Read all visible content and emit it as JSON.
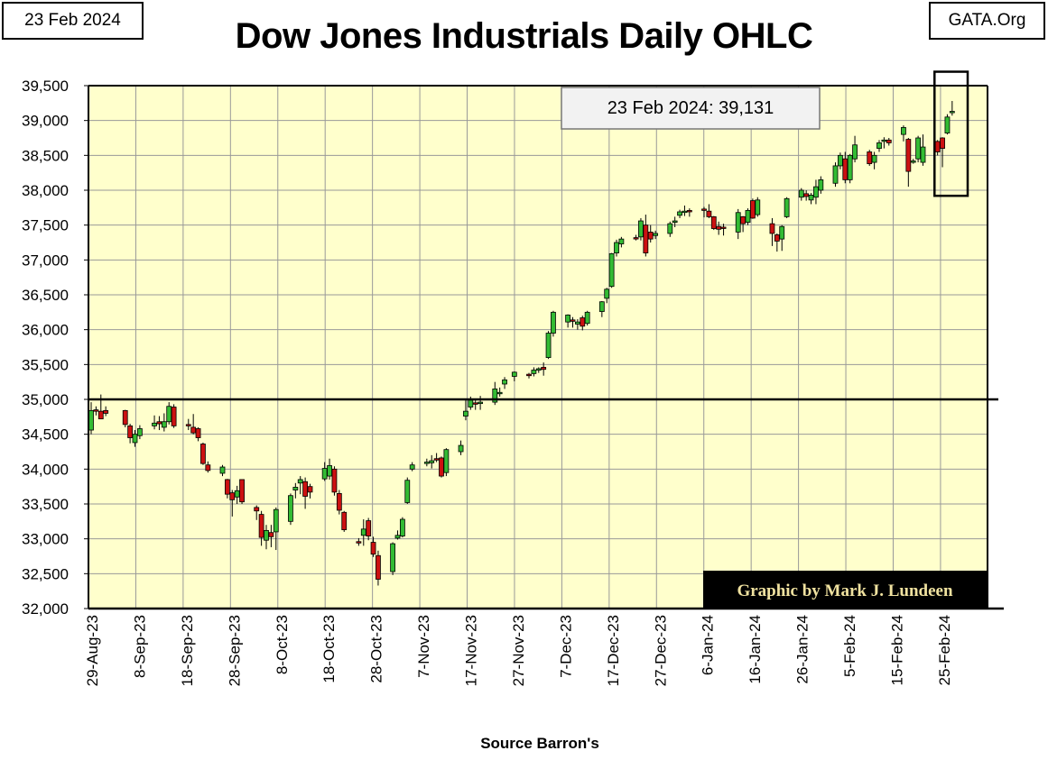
{
  "header": {
    "date_label": "23 Feb 2024",
    "site_label": "GATA.Org",
    "title": "Dow Jones Industrials Daily OHLC"
  },
  "annotation": {
    "text": "23 Feb 2024:  39,131"
  },
  "credit": {
    "text": "Graphic by Mark J. Lundeen"
  },
  "footer": {
    "source": "Source Barron's"
  },
  "colors": {
    "plot_bg": "#ffffcc",
    "grid": "#999999",
    "up": "#33bb33",
    "down": "#cc1111",
    "credit_bg": "#000000",
    "credit_text": "#f0e2a0"
  },
  "chart_data": {
    "type": "ohlc-candlestick",
    "title": "Dow Jones Industrials Daily OHLC",
    "xlabel": "Source Barron's",
    "ylabel": "",
    "ylim": [
      32000,
      39500
    ],
    "y_ticks": [
      32000,
      32500,
      33000,
      33500,
      34000,
      34500,
      35000,
      35500,
      36000,
      36500,
      37000,
      37500,
      38000,
      38500,
      39000,
      39500
    ],
    "y_tick_labels": [
      "32,000",
      "32,500",
      "33,000",
      "33,500",
      "34,000",
      "34,500",
      "35,000",
      "35,500",
      "36,000",
      "36,500",
      "37,000",
      "37,500",
      "38,000",
      "38,500",
      "39,000",
      "39,500"
    ],
    "x_tick_labels": [
      "29-Aug-23",
      "8-Sep-23",
      "18-Sep-23",
      "28-Sep-23",
      "8-Oct-23",
      "18-Oct-23",
      "28-Oct-23",
      "7-Nov-23",
      "17-Nov-23",
      "27-Nov-23",
      "7-Dec-23",
      "17-Dec-23",
      "27-Dec-23",
      "6-Jan-24",
      "16-Jan-24",
      "26-Jan-24",
      "5-Feb-24",
      "15-Feb-24",
      "25-Feb-24"
    ],
    "x_days_total": 180,
    "reference_line": 35000,
    "highlight_day_range": [
      173,
      180
    ],
    "highlight_value_range": [
      37920,
      39700
    ],
    "candles": [
      {
        "d": 0,
        "o": 34560,
        "h": 34960,
        "l": 34500,
        "c": 34840
      },
      {
        "d": 1,
        "o": 34850,
        "h": 34900,
        "l": 34770,
        "c": 34830
      },
      {
        "d": 2,
        "o": 34830,
        "h": 35070,
        "l": 34720,
        "c": 34720
      },
      {
        "d": 3,
        "o": 34840,
        "h": 34900,
        "l": 34760,
        "c": 34800
      },
      {
        "d": 7,
        "o": 34840,
        "h": 34850,
        "l": 34600,
        "c": 34640
      },
      {
        "d": 8,
        "o": 34620,
        "h": 34650,
        "l": 34370,
        "c": 34450
      },
      {
        "d": 9,
        "o": 34380,
        "h": 34560,
        "l": 34320,
        "c": 34500
      },
      {
        "d": 10,
        "o": 34480,
        "h": 34630,
        "l": 34430,
        "c": 34580
      },
      {
        "d": 13,
        "o": 34620,
        "h": 34770,
        "l": 34570,
        "c": 34660
      },
      {
        "d": 14,
        "o": 34680,
        "h": 34760,
        "l": 34560,
        "c": 34650
      },
      {
        "d": 15,
        "o": 34600,
        "h": 34800,
        "l": 34540,
        "c": 34680
      },
      {
        "d": 16,
        "o": 34680,
        "h": 34960,
        "l": 34640,
        "c": 34900
      },
      {
        "d": 17,
        "o": 34890,
        "h": 34930,
        "l": 34590,
        "c": 34620
      },
      {
        "d": 20,
        "o": 34640,
        "h": 34720,
        "l": 34560,
        "c": 34620
      },
      {
        "d": 21,
        "o": 34600,
        "h": 34790,
        "l": 34500,
        "c": 34520
      },
      {
        "d": 22,
        "o": 34580,
        "h": 34600,
        "l": 34400,
        "c": 34450
      },
      {
        "d": 23,
        "o": 34360,
        "h": 34380,
        "l": 34060,
        "c": 34080
      },
      {
        "d": 24,
        "o": 34060,
        "h": 34110,
        "l": 33950,
        "c": 33980
      },
      {
        "d": 27,
        "o": 33940,
        "h": 34060,
        "l": 33900,
        "c": 34030
      },
      {
        "d": 28,
        "o": 33850,
        "h": 33860,
        "l": 33580,
        "c": 33640
      },
      {
        "d": 29,
        "o": 33660,
        "h": 33700,
        "l": 33320,
        "c": 33560
      },
      {
        "d": 30,
        "o": 33600,
        "h": 33760,
        "l": 33500,
        "c": 33690
      },
      {
        "d": 31,
        "o": 33850,
        "h": 33850,
        "l": 33500,
        "c": 33530
      },
      {
        "d": 34,
        "o": 33450,
        "h": 33480,
        "l": 33270,
        "c": 33400
      },
      {
        "d": 35,
        "o": 33350,
        "h": 33400,
        "l": 32900,
        "c": 33020
      },
      {
        "d": 36,
        "o": 32980,
        "h": 33200,
        "l": 32850,
        "c": 33120
      },
      {
        "d": 37,
        "o": 33090,
        "h": 33200,
        "l": 32880,
        "c": 33030
      },
      {
        "d": 38,
        "o": 33100,
        "h": 33450,
        "l": 32840,
        "c": 33420
      },
      {
        "d": 41,
        "o": 33250,
        "h": 33650,
        "l": 33200,
        "c": 33620
      },
      {
        "d": 42,
        "o": 33700,
        "h": 33800,
        "l": 33580,
        "c": 33740
      },
      {
        "d": 43,
        "o": 33800,
        "h": 33900,
        "l": 33640,
        "c": 33850
      },
      {
        "d": 44,
        "o": 33820,
        "h": 33880,
        "l": 33430,
        "c": 33610
      },
      {
        "d": 45,
        "o": 33750,
        "h": 33790,
        "l": 33580,
        "c": 33670
      },
      {
        "d": 48,
        "o": 33860,
        "h": 34100,
        "l": 33830,
        "c": 34010
      },
      {
        "d": 49,
        "o": 33900,
        "h": 34150,
        "l": 33850,
        "c": 34050
      },
      {
        "d": 50,
        "o": 34000,
        "h": 34040,
        "l": 33620,
        "c": 33670
      },
      {
        "d": 51,
        "o": 33650,
        "h": 33700,
        "l": 33350,
        "c": 33410
      },
      {
        "d": 52,
        "o": 33380,
        "h": 33400,
        "l": 33100,
        "c": 33130
      },
      {
        "d": 55,
        "o": 32960,
        "h": 33010,
        "l": 32900,
        "c": 32940
      },
      {
        "d": 56,
        "o": 33050,
        "h": 33280,
        "l": 32900,
        "c": 33140
      },
      {
        "d": 57,
        "o": 33260,
        "h": 33300,
        "l": 32980,
        "c": 33040
      },
      {
        "d": 58,
        "o": 32950,
        "h": 33030,
        "l": 32740,
        "c": 32780
      },
      {
        "d": 59,
        "o": 32760,
        "h": 32830,
        "l": 32330,
        "c": 32420
      },
      {
        "d": 62,
        "o": 32530,
        "h": 32950,
        "l": 32480,
        "c": 32930
      },
      {
        "d": 63,
        "o": 33010,
        "h": 33120,
        "l": 32990,
        "c": 33050
      },
      {
        "d": 64,
        "o": 33040,
        "h": 33310,
        "l": 33020,
        "c": 33280
      },
      {
        "d": 65,
        "o": 33520,
        "h": 33880,
        "l": 33500,
        "c": 33840
      },
      {
        "d": 66,
        "o": 34000,
        "h": 34100,
        "l": 33970,
        "c": 34060
      },
      {
        "d": 69,
        "o": 34080,
        "h": 34150,
        "l": 34040,
        "c": 34100
      },
      {
        "d": 70,
        "o": 34090,
        "h": 34200,
        "l": 34010,
        "c": 34120
      },
      {
        "d": 71,
        "o": 34150,
        "h": 34230,
        "l": 34100,
        "c": 34130
      },
      {
        "d": 72,
        "o": 34160,
        "h": 34180,
        "l": 33880,
        "c": 33900
      },
      {
        "d": 73,
        "o": 33950,
        "h": 34300,
        "l": 33900,
        "c": 34280
      },
      {
        "d": 76,
        "o": 34250,
        "h": 34410,
        "l": 34200,
        "c": 34340
      },
      {
        "d": 77,
        "o": 34760,
        "h": 34990,
        "l": 34700,
        "c": 34830
      },
      {
        "d": 78,
        "o": 34890,
        "h": 35040,
        "l": 34850,
        "c": 34990
      },
      {
        "d": 79,
        "o": 34950,
        "h": 35010,
        "l": 34850,
        "c": 34940
      },
      {
        "d": 80,
        "o": 34940,
        "h": 35050,
        "l": 34850,
        "c": 34960
      },
      {
        "d": 83,
        "o": 34960,
        "h": 35250,
        "l": 34920,
        "c": 35150
      },
      {
        "d": 84,
        "o": 35090,
        "h": 35170,
        "l": 35040,
        "c": 35100
      },
      {
        "d": 85,
        "o": 35220,
        "h": 35320,
        "l": 35150,
        "c": 35280
      },
      {
        "d": 87,
        "o": 35330,
        "h": 35400,
        "l": 35260,
        "c": 35390
      },
      {
        "d": 90,
        "o": 35360,
        "h": 35380,
        "l": 35300,
        "c": 35340
      },
      {
        "d": 91,
        "o": 35370,
        "h": 35460,
        "l": 35330,
        "c": 35420
      },
      {
        "d": 92,
        "o": 35420,
        "h": 35460,
        "l": 35380,
        "c": 35440
      },
      {
        "d": 93,
        "o": 35460,
        "h": 35530,
        "l": 35340,
        "c": 35430
      },
      {
        "d": 94,
        "o": 35600,
        "h": 35980,
        "l": 35580,
        "c": 35950
      },
      {
        "d": 95,
        "o": 35950,
        "h": 36270,
        "l": 35900,
        "c": 36250
      },
      {
        "d": 98,
        "o": 36110,
        "h": 36220,
        "l": 36030,
        "c": 36210
      },
      {
        "d": 99,
        "o": 36140,
        "h": 36180,
        "l": 36030,
        "c": 36120
      },
      {
        "d": 100,
        "o": 36080,
        "h": 36150,
        "l": 36000,
        "c": 36110
      },
      {
        "d": 101,
        "o": 36170,
        "h": 36200,
        "l": 35990,
        "c": 36050
      },
      {
        "d": 102,
        "o": 36090,
        "h": 36270,
        "l": 36060,
        "c": 36250
      },
      {
        "d": 105,
        "o": 36260,
        "h": 36410,
        "l": 36180,
        "c": 36400
      },
      {
        "d": 106,
        "o": 36450,
        "h": 36600,
        "l": 36380,
        "c": 36580
      },
      {
        "d": 107,
        "o": 36620,
        "h": 37100,
        "l": 36600,
        "c": 37090
      },
      {
        "d": 108,
        "o": 37100,
        "h": 37290,
        "l": 37050,
        "c": 37250
      },
      {
        "d": 109,
        "o": 37230,
        "h": 37330,
        "l": 37180,
        "c": 37300
      },
      {
        "d": 112,
        "o": 37320,
        "h": 37360,
        "l": 37280,
        "c": 37310
      },
      {
        "d": 113,
        "o": 37330,
        "h": 37600,
        "l": 37280,
        "c": 37560
      },
      {
        "d": 114,
        "o": 37500,
        "h": 37650,
        "l": 37050,
        "c": 37100
      },
      {
        "d": 115,
        "o": 37400,
        "h": 37500,
        "l": 37250,
        "c": 37300
      },
      {
        "d": 116,
        "o": 37350,
        "h": 37420,
        "l": 37300,
        "c": 37380
      },
      {
        "d": 119,
        "o": 37380,
        "h": 37550,
        "l": 37330,
        "c": 37520
      },
      {
        "d": 120,
        "o": 37540,
        "h": 37620,
        "l": 37470,
        "c": 37560
      },
      {
        "d": 121,
        "o": 37640,
        "h": 37720,
        "l": 37600,
        "c": 37690
      },
      {
        "d": 122,
        "o": 37700,
        "h": 37780,
        "l": 37630,
        "c": 37700
      },
      {
        "d": 123,
        "o": 37710,
        "h": 37740,
        "l": 37620,
        "c": 37690
      },
      {
        "d": 126,
        "o": 37730,
        "h": 37760,
        "l": 37610,
        "c": 37720
      },
      {
        "d": 127,
        "o": 37700,
        "h": 37800,
        "l": 37600,
        "c": 37620
      },
      {
        "d": 128,
        "o": 37620,
        "h": 37630,
        "l": 37430,
        "c": 37450
      },
      {
        "d": 129,
        "o": 37480,
        "h": 37550,
        "l": 37360,
        "c": 37440
      },
      {
        "d": 130,
        "o": 37470,
        "h": 37520,
        "l": 37350,
        "c": 37460
      },
      {
        "d": 133,
        "o": 37400,
        "h": 37730,
        "l": 37300,
        "c": 37680
      },
      {
        "d": 134,
        "o": 37620,
        "h": 37630,
        "l": 37400,
        "c": 37520
      },
      {
        "d": 135,
        "o": 37540,
        "h": 37740,
        "l": 37500,
        "c": 37710
      },
      {
        "d": 136,
        "o": 37850,
        "h": 37880,
        "l": 37590,
        "c": 37600
      },
      {
        "d": 137,
        "o": 37650,
        "h": 37900,
        "l": 37620,
        "c": 37860
      },
      {
        "d": 140,
        "o": 37520,
        "h": 37600,
        "l": 37200,
        "c": 37380
      },
      {
        "d": 141,
        "o": 37360,
        "h": 37380,
        "l": 37120,
        "c": 37270
      },
      {
        "d": 142,
        "o": 37300,
        "h": 37500,
        "l": 37130,
        "c": 37480
      },
      {
        "d": 143,
        "o": 37620,
        "h": 37900,
        "l": 37600,
        "c": 37880
      },
      {
        "d": 146,
        "o": 37900,
        "h": 38030,
        "l": 37850,
        "c": 38000
      },
      {
        "d": 147,
        "o": 37950,
        "h": 38000,
        "l": 37850,
        "c": 37910
      },
      {
        "d": 148,
        "o": 37860,
        "h": 37960,
        "l": 37800,
        "c": 37930
      },
      {
        "d": 149,
        "o": 37900,
        "h": 38150,
        "l": 37800,
        "c": 38050
      },
      {
        "d": 150,
        "o": 38000,
        "h": 38200,
        "l": 37950,
        "c": 38150
      },
      {
        "d": 153,
        "o": 38100,
        "h": 38400,
        "l": 38050,
        "c": 38350
      },
      {
        "d": 154,
        "o": 38350,
        "h": 38540,
        "l": 38300,
        "c": 38500
      },
      {
        "d": 155,
        "o": 38450,
        "h": 38550,
        "l": 38100,
        "c": 38150
      },
      {
        "d": 156,
        "o": 38150,
        "h": 38520,
        "l": 38100,
        "c": 38500
      },
      {
        "d": 157,
        "o": 38450,
        "h": 38780,
        "l": 38400,
        "c": 38650
      },
      {
        "d": 160,
        "o": 38550,
        "h": 38580,
        "l": 38350,
        "c": 38380
      },
      {
        "d": 161,
        "o": 38400,
        "h": 38550,
        "l": 38300,
        "c": 38500
      },
      {
        "d": 162,
        "o": 38600,
        "h": 38720,
        "l": 38550,
        "c": 38680
      },
      {
        "d": 163,
        "o": 38700,
        "h": 38760,
        "l": 38600,
        "c": 38720
      },
      {
        "d": 164,
        "o": 38720,
        "h": 38750,
        "l": 38640,
        "c": 38680
      },
      {
        "d": 167,
        "o": 38800,
        "h": 38930,
        "l": 38700,
        "c": 38900
      },
      {
        "d": 168,
        "o": 38730,
        "h": 38750,
        "l": 38050,
        "c": 38270
      },
      {
        "d": 169,
        "o": 38400,
        "h": 38450,
        "l": 38380,
        "c": 38420
      },
      {
        "d": 170,
        "o": 38450,
        "h": 38780,
        "l": 38400,
        "c": 38750
      },
      {
        "d": 171,
        "o": 38400,
        "h": 38800,
        "l": 38350,
        "c": 38620
      },
      {
        "d": 174,
        "o": 38700,
        "h": 38720,
        "l": 38500,
        "c": 38550
      },
      {
        "d": 175,
        "o": 38750,
        "h": 38760,
        "l": 38330,
        "c": 38600
      },
      {
        "d": 176,
        "o": 38820,
        "h": 39090,
        "l": 38800,
        "c": 39050
      },
      {
        "d": 177,
        "o": 39120,
        "h": 39280,
        "l": 39070,
        "c": 39131
      }
    ]
  }
}
